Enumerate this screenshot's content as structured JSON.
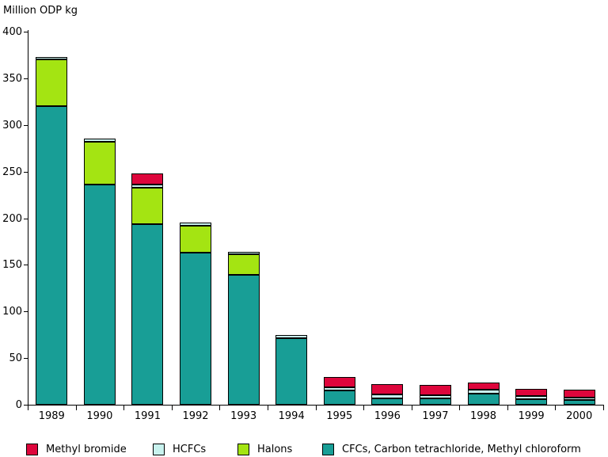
{
  "chart_data": {
    "type": "bar",
    "stacked": true,
    "title": "Million ODP kg",
    "xlabel": "",
    "ylabel": "Million ODP kg",
    "ylim": [
      0,
      400
    ],
    "ytick_step": 50,
    "grid": false,
    "legend_position": "bottom",
    "categories": [
      "1989",
      "1990",
      "1991",
      "1992",
      "1993",
      "1994",
      "1995",
      "1996",
      "1997",
      "1998",
      "1999",
      "2000"
    ],
    "series": [
      {
        "key": "cfcs",
        "name": "CFCs, Carbon tetrachloride, Methyl chloroform",
        "color": "#189E96",
        "values": [
          320,
          236,
          194,
          163,
          139,
          71,
          15,
          7,
          7,
          12,
          6,
          5
        ]
      },
      {
        "key": "halons",
        "name": "Halons",
        "color": "#A4E412",
        "values": [
          50,
          46,
          39,
          29,
          22,
          0,
          0,
          0,
          0,
          0,
          0,
          0
        ]
      },
      {
        "key": "hcfcs",
        "name": "HCFCs",
        "color": "#C8F2EE",
        "values": [
          3,
          3,
          3,
          3,
          3,
          4,
          4,
          4,
          3,
          4,
          3,
          3
        ]
      },
      {
        "key": "methyl-bromide",
        "name": "Methyl bromide",
        "color": "#DE063C",
        "values": [
          0,
          0,
          12,
          0,
          0,
          0,
          11,
          11,
          11,
          8,
          8,
          8
        ]
      }
    ]
  },
  "legend": {
    "items": [
      {
        "key": "methyl-bromide",
        "label": "Methyl bromide",
        "color": "#DE063C"
      },
      {
        "key": "hcfcs",
        "label": "HCFCs",
        "color": "#C8F2EE"
      },
      {
        "key": "halons",
        "label": "Halons",
        "color": "#A4E412"
      },
      {
        "key": "cfcs",
        "label": "CFCs, Carbon tetrachloride, Methyl chloroform",
        "color": "#189E96"
      }
    ]
  }
}
